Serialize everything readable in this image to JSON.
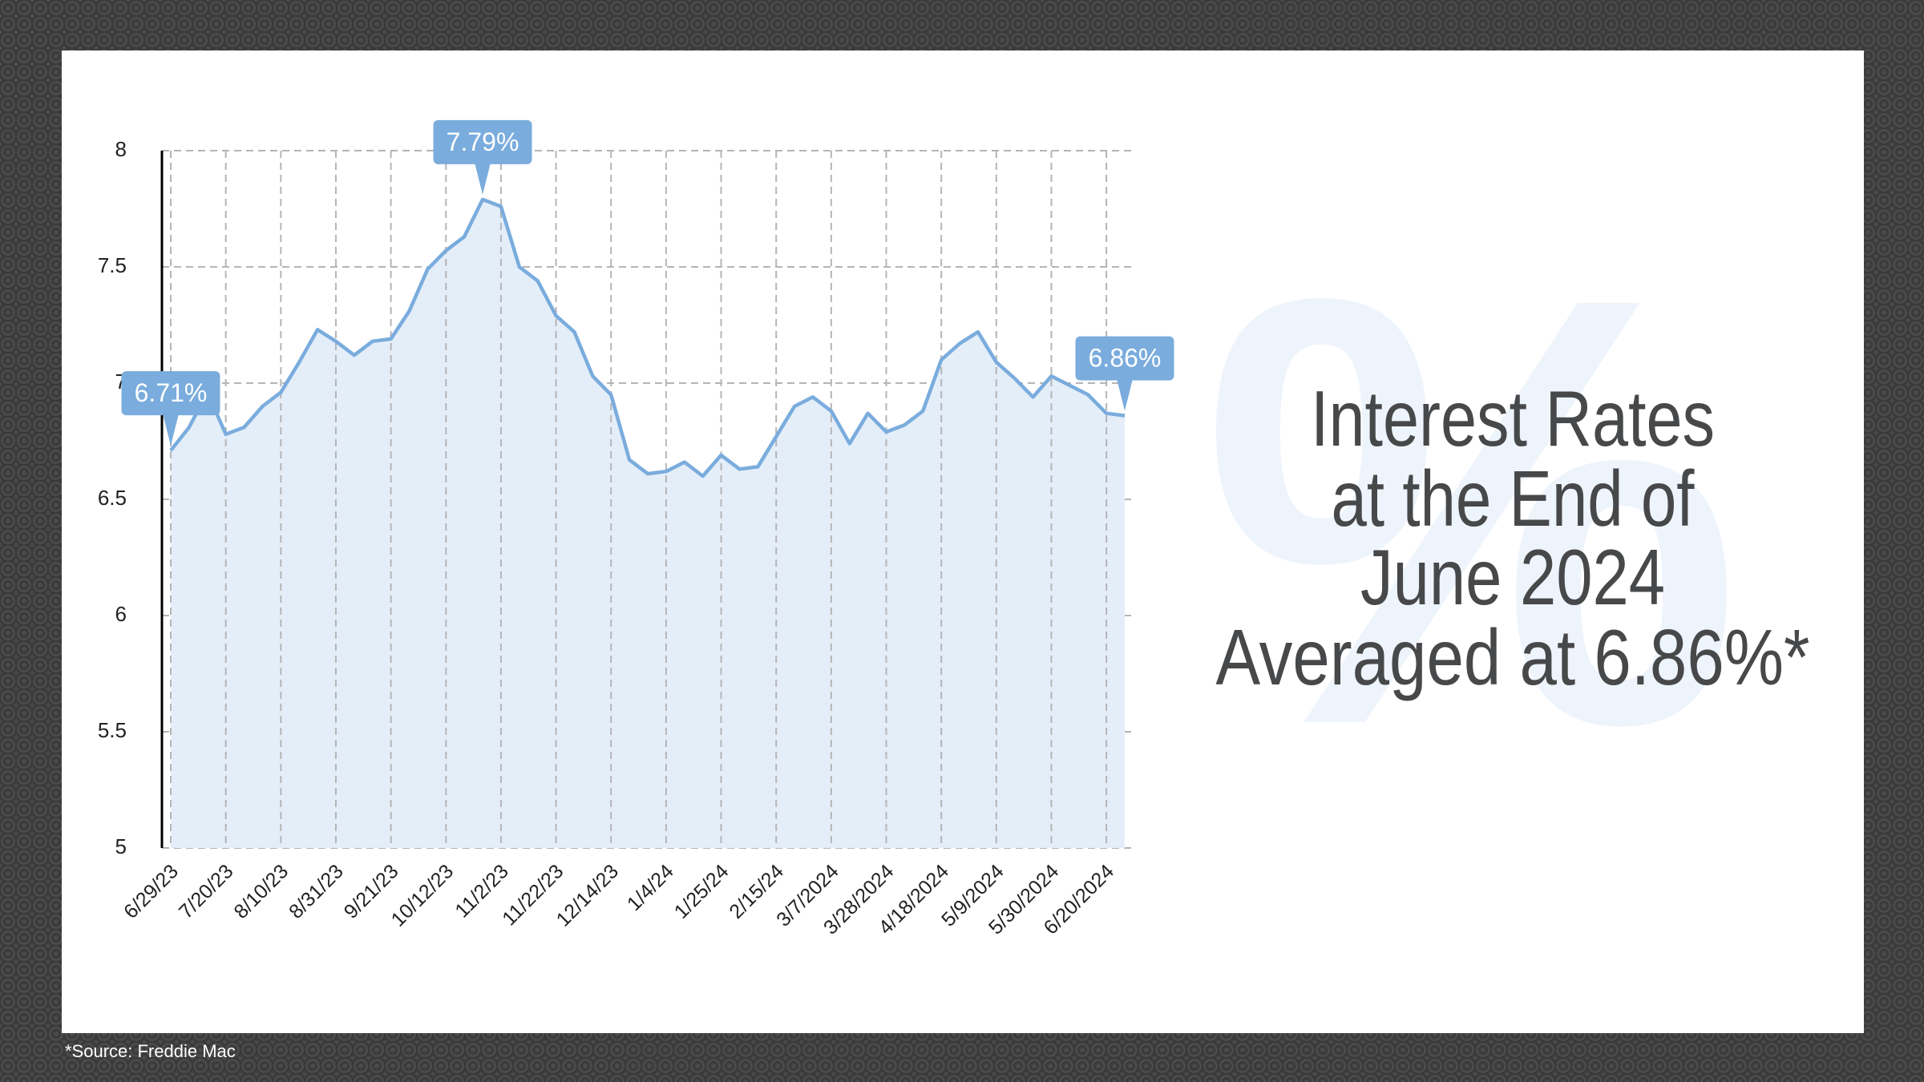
{
  "chart_data": {
    "type": "area",
    "title_lines": [
      "Interest Rates",
      "at the End of",
      "June 2024",
      "Averaged at 6.86%*"
    ],
    "watermark": "%",
    "source": "*Source: Freddie Mac",
    "categories": [
      "6/29/23",
      null,
      null,
      "7/20/23",
      null,
      null,
      "8/10/23",
      null,
      null,
      "8/31/23",
      null,
      null,
      "9/21/23",
      null,
      null,
      "10/12/23",
      null,
      null,
      "11/2/23",
      null,
      null,
      "11/22/23",
      null,
      null,
      "12/14/23",
      null,
      null,
      "1/4/24",
      null,
      null,
      "1/25/24",
      null,
      null,
      "2/15/24",
      null,
      null,
      "3/7/2024",
      null,
      null,
      "3/28/2024",
      null,
      null,
      "4/18/2024",
      null,
      null,
      "5/9/2024",
      null,
      null,
      "5/30/2024",
      null,
      null,
      "6/20/2024",
      null
    ],
    "values": [
      6.71,
      6.81,
      6.96,
      6.78,
      6.81,
      6.9,
      6.96,
      7.09,
      7.23,
      7.18,
      7.12,
      7.18,
      7.19,
      7.31,
      7.49,
      7.57,
      7.63,
      7.79,
      7.76,
      7.5,
      7.44,
      7.29,
      7.22,
      7.03,
      6.95,
      6.67,
      6.61,
      6.62,
      6.66,
      6.6,
      6.69,
      6.63,
      6.64,
      6.77,
      6.9,
      6.94,
      6.88,
      6.74,
      6.87,
      6.79,
      6.82,
      6.88,
      7.1,
      7.17,
      7.22,
      7.09,
      7.02,
      6.94,
      7.03,
      6.99,
      6.95,
      6.87,
      6.86
    ],
    "value_labels": [
      "6.71%",
      null,
      null,
      null,
      null,
      null,
      null,
      null,
      null,
      null,
      null,
      null,
      null,
      null,
      null,
      null,
      null,
      "7.79%",
      null,
      null,
      null,
      null,
      null,
      null,
      null,
      null,
      null,
      null,
      null,
      null,
      null,
      null,
      null,
      null,
      null,
      null,
      null,
      null,
      null,
      null,
      null,
      null,
      null,
      null,
      null,
      null,
      null,
      null,
      null,
      null,
      null,
      null,
      "6.86%"
    ],
    "color": "#7aacdd",
    "fill": "#e4eef9",
    "ylim": [
      5,
      8
    ],
    "yticks": [
      5,
      5.5,
      6,
      6.5,
      7,
      7.5,
      8
    ],
    "grid": true
  }
}
